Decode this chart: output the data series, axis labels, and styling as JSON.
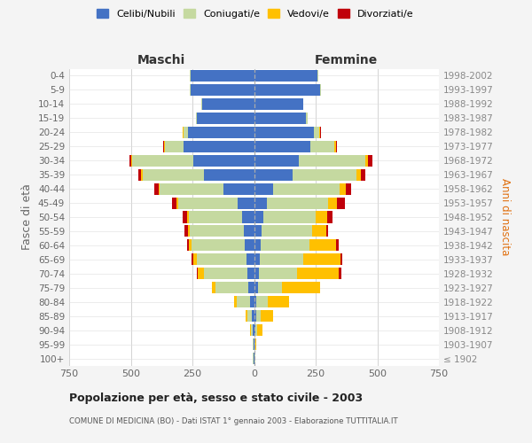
{
  "age_groups": [
    "100+",
    "95-99",
    "90-94",
    "85-89",
    "80-84",
    "75-79",
    "70-74",
    "65-69",
    "60-64",
    "55-59",
    "50-54",
    "45-49",
    "40-44",
    "35-39",
    "30-34",
    "25-29",
    "20-24",
    "15-19",
    "10-14",
    "5-9",
    "0-4"
  ],
  "birth_years": [
    "≤ 1902",
    "1903-1907",
    "1908-1912",
    "1913-1917",
    "1918-1922",
    "1923-1927",
    "1928-1932",
    "1933-1937",
    "1938-1942",
    "1943-1947",
    "1948-1952",
    "1953-1957",
    "1958-1962",
    "1963-1967",
    "1968-1972",
    "1973-1977",
    "1978-1982",
    "1983-1987",
    "1988-1992",
    "1993-1997",
    "1998-2002"
  ],
  "maschi_celibi": [
    2,
    3,
    5,
    8,
    15,
    25,
    28,
    32,
    38,
    42,
    48,
    68,
    125,
    205,
    245,
    285,
    268,
    232,
    212,
    258,
    258
  ],
  "maschi_coniugati": [
    2,
    4,
    8,
    20,
    55,
    130,
    175,
    200,
    215,
    220,
    218,
    240,
    258,
    248,
    248,
    78,
    18,
    5,
    3,
    3,
    3
  ],
  "maschi_vedovi": [
    0,
    0,
    2,
    5,
    10,
    15,
    25,
    15,
    10,
    5,
    5,
    5,
    5,
    5,
    5,
    2,
    2,
    0,
    0,
    0,
    0
  ],
  "maschi_divorziati": [
    0,
    0,
    0,
    0,
    0,
    0,
    5,
    5,
    10,
    15,
    20,
    20,
    15,
    12,
    8,
    3,
    2,
    0,
    0,
    0,
    0
  ],
  "femmine_nubili": [
    2,
    3,
    5,
    8,
    10,
    15,
    18,
    22,
    28,
    32,
    38,
    52,
    78,
    158,
    182,
    228,
    242,
    212,
    198,
    268,
    258
  ],
  "femmine_coniugate": [
    2,
    3,
    8,
    18,
    45,
    100,
    155,
    178,
    198,
    202,
    212,
    248,
    268,
    258,
    268,
    98,
    22,
    5,
    3,
    3,
    3
  ],
  "femmine_vedove": [
    0,
    2,
    20,
    50,
    88,
    152,
    172,
    152,
    108,
    58,
    48,
    38,
    28,
    18,
    12,
    5,
    5,
    0,
    0,
    0,
    0
  ],
  "femmine_divorziate": [
    0,
    0,
    0,
    0,
    0,
    0,
    8,
    5,
    10,
    10,
    20,
    30,
    20,
    18,
    18,
    5,
    3,
    0,
    0,
    0,
    0
  ],
  "color_celibi": "#4472c4",
  "color_coniugati": "#c5d9a0",
  "color_vedovi": "#ffc000",
  "color_divorziati": "#c0000b",
  "xlim": 750,
  "title": "Popolazione per età, sesso e stato civile - 2003",
  "subtitle": "COMUNE DI MEDICINA (BO) - Dati ISTAT 1° gennaio 2003 - Elaborazione TUTTITALIA.IT",
  "ylabel_left": "Fasce di età",
  "ylabel_right": "Anni di nascita",
  "maschi_label": "Maschi",
  "femmine_label": "Femmine",
  "bg_color": "#f4f4f4",
  "plot_bg": "#ffffff"
}
